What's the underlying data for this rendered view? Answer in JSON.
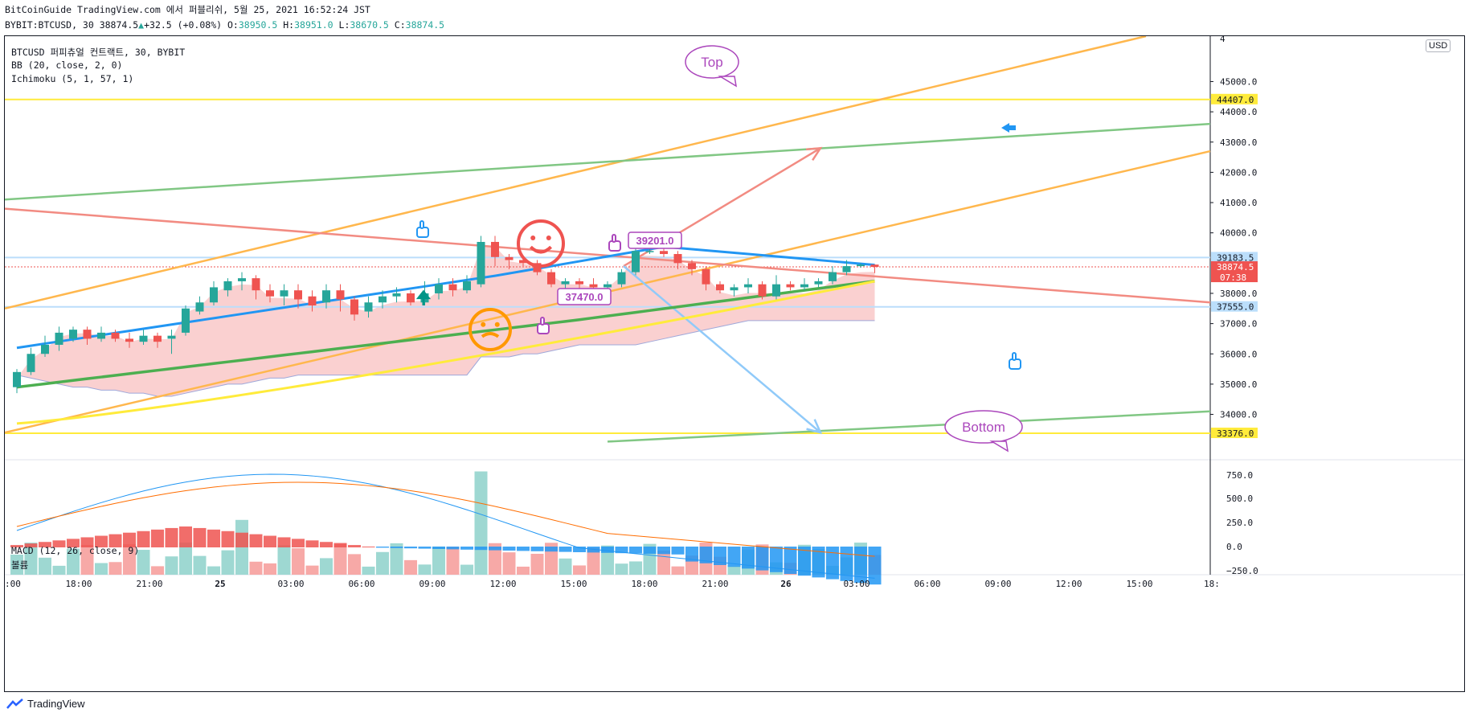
{
  "header": {
    "line1": "BitCoinGuide TradingView.com 에서 퍼블리쉬, 5월 25, 2021 16:52:24 JST",
    "symbol": "BYBIT:BTCUSD, 30 38874.5",
    "change": "+32.5 (+0.08%)",
    "o_label": "O:",
    "o_value": "38950.5",
    "h_label": "H:",
    "h_value": "38951.0",
    "l_label": "L:",
    "l_value": "38670.5",
    "c_label": "C:",
    "c_value": "38874.5"
  },
  "legend": {
    "line1": "BTCUSD 퍼피츄얼 컨트랙트, 30, BYBIT",
    "line2": "BB (20, close, 2, 0)",
    "line3": "Ichimoku (5, 1, 57, 1)",
    "macd": "MACD (12, 26, close, 9)",
    "volume": "볼륨"
  },
  "currency": "USD",
  "footer": {
    "brand": "TradingView"
  },
  "colors": {
    "up": "#26a69a",
    "down": "#ef5350",
    "bb": "#2196f3",
    "ichi_green": "#4caf50",
    "ichi_yellow": "#ffeb3b",
    "cloud": "#f8c0c0",
    "orange": "#ffb74d",
    "trend_green": "#81c784",
    "red_line": "#f28b82",
    "purple": "#ab47bc",
    "blue_arrow": "#90caf9",
    "level_yellow": "#ffeb3b",
    "level_blue": "#bbdefb"
  },
  "chart_data": {
    "type": "candlestick",
    "ylim": [
      32500,
      46500
    ],
    "y_ticks": [
      "45000.0",
      "44000.0",
      "43000.0",
      "42000.0",
      "41000.0",
      "40000.0",
      "38000.0",
      "37000.0",
      "36000.0",
      "35000.0",
      "34000.0"
    ],
    "x_ticks": [
      "18:00",
      "21:00",
      "25",
      "03:00",
      "06:00",
      "09:00",
      "12:00",
      "15:00",
      "18:00",
      "21:00",
      "26",
      "03:00",
      "06:00",
      "09:00",
      "12:00",
      "15:00"
    ],
    "x_tick_left_partial": ":00",
    "x_tick_right_partial": "18:",
    "y_tick_top_partial": "4",
    "price_labels": [
      {
        "text": "44407.0",
        "value": 44407,
        "kind": "yellow"
      },
      {
        "text": "39183.5",
        "value": 39183.5,
        "kind": "blue"
      },
      {
        "text": "38874.5",
        "value": 38874.5,
        "kind": "current",
        "sub": "07:38"
      },
      {
        "text": "37555.0",
        "value": 37555,
        "kind": "blue"
      },
      {
        "text": "33376.0",
        "value": 33376,
        "kind": "yellow"
      }
    ],
    "annotations": {
      "top": "Top",
      "bottom": "Bottom",
      "price_box_1": "39201.0",
      "price_box_2": "37470.0"
    },
    "candles": [
      [
        34900,
        35400,
        34700,
        35500
      ],
      [
        35400,
        36000,
        35300,
        36200
      ],
      [
        36000,
        36300,
        35900,
        36600
      ],
      [
        36300,
        36700,
        36100,
        36900
      ],
      [
        36500,
        36800,
        36400,
        36900
      ],
      [
        36800,
        36500,
        36300,
        36900
      ],
      [
        36500,
        36700,
        36400,
        36900
      ],
      [
        36700,
        36500,
        36400,
        36800
      ],
      [
        36500,
        36400,
        36200,
        36700
      ],
      [
        36400,
        36600,
        36300,
        36800
      ],
      [
        36600,
        36400,
        36200,
        36700
      ],
      [
        36500,
        36600,
        36000,
        36800
      ],
      [
        36700,
        37500,
        36600,
        37600
      ],
      [
        37400,
        37700,
        37300,
        37900
      ],
      [
        37700,
        38200,
        37600,
        38400
      ],
      [
        38100,
        38400,
        37900,
        38500
      ],
      [
        38400,
        38500,
        38100,
        38700
      ],
      [
        38500,
        38100,
        37800,
        38600
      ],
      [
        38100,
        37900,
        37700,
        38300
      ],
      [
        37900,
        38100,
        37600,
        38300
      ],
      [
        38100,
        37800,
        37500,
        38300
      ],
      [
        37900,
        37600,
        37400,
        38100
      ],
      [
        37700,
        38100,
        37500,
        38300
      ],
      [
        38100,
        37800,
        37400,
        38300
      ],
      [
        37800,
        37300,
        37100,
        37900
      ],
      [
        37400,
        37700,
        37200,
        37900
      ],
      [
        37700,
        37900,
        37500,
        38100
      ],
      [
        37900,
        38000,
        37700,
        38200
      ],
      [
        38000,
        37700,
        37600,
        38100
      ],
      [
        37700,
        38000,
        37600,
        38400
      ],
      [
        38000,
        38300,
        37800,
        38500
      ],
      [
        38300,
        38100,
        37900,
        38500
      ],
      [
        38100,
        38400,
        38000,
        38600
      ],
      [
        38300,
        39700,
        38200,
        39900
      ],
      [
        39700,
        39200,
        38900,
        39900
      ],
      [
        39200,
        39100,
        38800,
        39300
      ],
      [
        39100,
        39000,
        38900,
        39200
      ],
      [
        39000,
        38700,
        38600,
        39100
      ],
      [
        38700,
        38300,
        38200,
        38800
      ],
      [
        38300,
        38400,
        38100,
        38500
      ],
      [
        38400,
        38300,
        38100,
        38500
      ],
      [
        38300,
        38200,
        38100,
        38500
      ],
      [
        38200,
        38300,
        38100,
        38400
      ],
      [
        38300,
        38700,
        38200,
        38800
      ],
      [
        38700,
        39400,
        38600,
        39500
      ],
      [
        39400,
        39400,
        39300,
        39800
      ],
      [
        39400,
        39300,
        39200,
        39500
      ],
      [
        39300,
        39000,
        38800,
        39400
      ],
      [
        39000,
        38800,
        38600,
        39100
      ],
      [
        38800,
        38300,
        38100,
        38900
      ],
      [
        38300,
        38100,
        38000,
        38400
      ],
      [
        38100,
        38200,
        37900,
        38300
      ],
      [
        38200,
        38300,
        38000,
        38500
      ],
      [
        38300,
        37900,
        37800,
        38400
      ],
      [
        37900,
        38300,
        37800,
        38600
      ],
      [
        38300,
        38200,
        38100,
        38400
      ],
      [
        38200,
        38300,
        38100,
        38500
      ],
      [
        38300,
        38400,
        38200,
        38500
      ],
      [
        38400,
        38700,
        38300,
        38900
      ],
      [
        38700,
        38900,
        38600,
        39100
      ],
      [
        38900,
        38950,
        38850,
        39000
      ],
      [
        38950,
        38874.5,
        38670.5,
        38951
      ]
    ]
  }
}
